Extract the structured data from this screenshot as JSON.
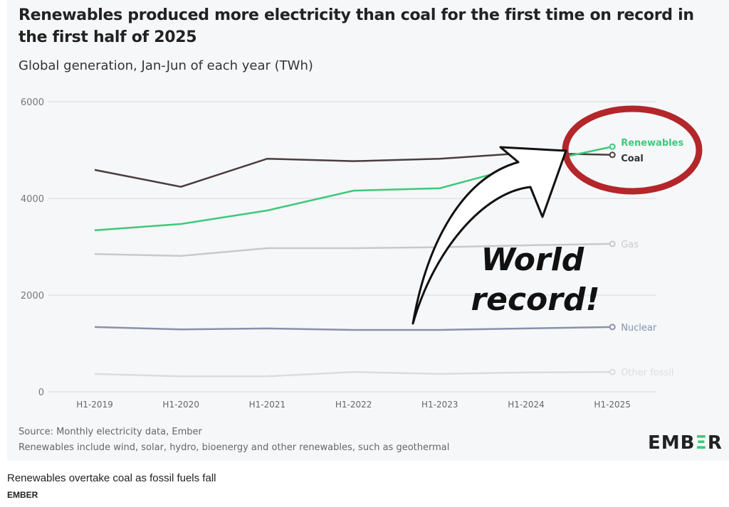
{
  "header": {
    "title": "Renewables produced more electricity than coal for the first time on record in the first half of 2025",
    "subtitle": "Global generation, Jan-Jun of each year (TWh)"
  },
  "chart_data": {
    "type": "line",
    "title": "Renewables produced more electricity than coal for the first time on record in the first half of 2025",
    "ylabel": "Global generation, Jan-Jun of each year (TWh)",
    "xlabel": "",
    "categories": [
      "H1-2019",
      "H1-2020",
      "H1-2021",
      "H1-2022",
      "H1-2023",
      "H1-2024",
      "H1-2025"
    ],
    "ylim": [
      0,
      6000
    ],
    "yticks": [
      0,
      2000,
      4000,
      6000
    ],
    "grid": true,
    "legend": "end-of-line labels (right)",
    "series": [
      {
        "name": "Renewables",
        "color": "#3ec97a",
        "values": [
          3340,
          3470,
          3750,
          4160,
          4210,
          4690,
          5070
        ]
      },
      {
        "name": "Coal",
        "color": "#4a3d3d",
        "values": [
          4590,
          4240,
          4820,
          4770,
          4820,
          4940,
          4900
        ]
      },
      {
        "name": "Gas",
        "color": "#c9c9c9",
        "values": [
          2850,
          2810,
          2970,
          2970,
          2990,
          3030,
          3060
        ]
      },
      {
        "name": "Nuclear",
        "color": "#8791a8",
        "values": [
          1340,
          1290,
          1310,
          1280,
          1280,
          1310,
          1340
        ]
      },
      {
        "name": "Other fossil",
        "color": "#dcdcdc",
        "values": [
          370,
          320,
          320,
          410,
          370,
          400,
          410
        ]
      }
    ],
    "annotation": "World record!"
  },
  "footer": {
    "source": "Source: Monthly electricity data, Ember",
    "note": "Renewables include wind, solar, hydro, bioenergy and other renewables, such as geothermal",
    "logo_main": "EMB",
    "logo_accent": "Ξ",
    "logo_end": "R"
  },
  "caption": "Renewables overtake coal as fossil fuels fall",
  "credit": "EMBER"
}
